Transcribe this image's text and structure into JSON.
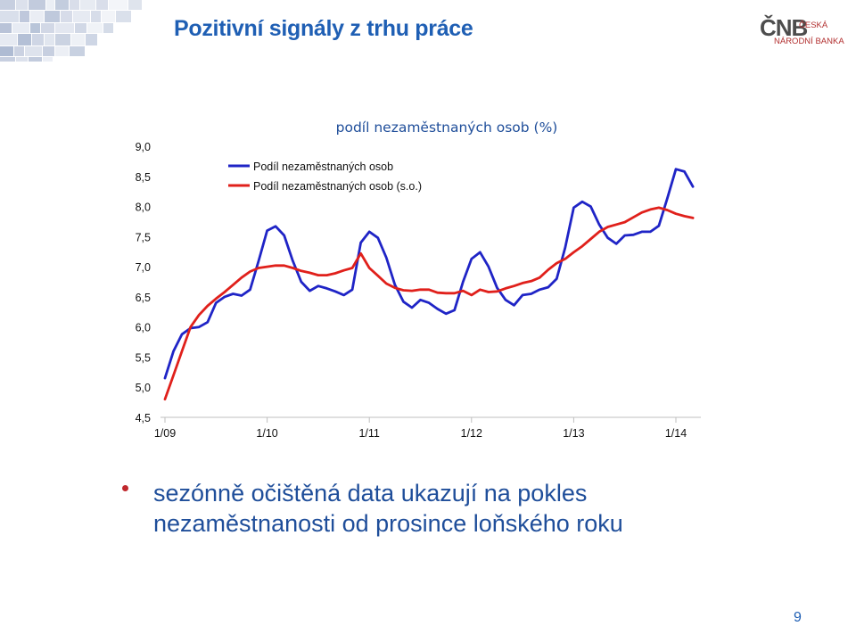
{
  "slide": {
    "title": "Pozitivní signály z trhu práce",
    "logo_mark": "ČNB",
    "logo_line1": "ČESKÁ",
    "logo_line2": "NÁRODNÍ BANKA",
    "bullet": "sezónně očištěná data ukazují na pokles nezaměstnanosti od prosince loňského roku",
    "page_number": "9"
  },
  "colors": {
    "title": "#1f5fb4",
    "series_raw": "#1f24c6",
    "series_sa": "#e0201b",
    "bullet": "#c0282d",
    "bullet_text": "#1f4e9a",
    "mosaic": [
      "#c7cfe0",
      "#d9dfeb",
      "#b9c3d8",
      "#e6eaf2",
      "#aebbd3"
    ]
  },
  "chart_data": {
    "type": "line",
    "title": "podíl nezaměstnaných osob (%)",
    "xlabel": "",
    "ylabel": "",
    "ylim": [
      4.5,
      9.0
    ],
    "yticks": [
      "4,5",
      "5,0",
      "5,5",
      "6,0",
      "6,5",
      "7,0",
      "7,5",
      "8,0",
      "8,5",
      "9,0"
    ],
    "xticks": [
      "1/09",
      "1/10",
      "1/11",
      "1/12",
      "1/13",
      "1/14"
    ],
    "x_start": "1/09",
    "x_step": "1 month",
    "legend_position": "top-left",
    "grid": false,
    "series": [
      {
        "name": "Podíl nezaměstnaných osob",
        "color": "#1f24c6",
        "values": [
          5.15,
          5.6,
          5.88,
          5.98,
          6.0,
          6.08,
          6.4,
          6.5,
          6.55,
          6.52,
          6.62,
          7.1,
          7.6,
          7.67,
          7.52,
          7.1,
          6.75,
          6.6,
          6.68,
          6.64,
          6.59,
          6.53,
          6.62,
          7.4,
          7.58,
          7.48,
          7.15,
          6.7,
          6.42,
          6.32,
          6.45,
          6.4,
          6.3,
          6.22,
          6.28,
          6.75,
          7.13,
          7.24,
          7.0,
          6.65,
          6.45,
          6.36,
          6.53,
          6.55,
          6.62,
          6.66,
          6.8,
          7.32,
          7.98,
          8.08,
          8.0,
          7.7,
          7.48,
          7.38,
          7.52,
          7.53,
          7.58,
          7.58,
          7.68,
          8.14,
          8.62,
          8.58,
          8.33
        ]
      },
      {
        "name": "Podíl nezaměstnaných osob (s.o.)",
        "color": "#e0201b",
        "values": [
          4.8,
          5.2,
          5.6,
          6.0,
          6.2,
          6.35,
          6.47,
          6.58,
          6.7,
          6.82,
          6.92,
          6.98,
          7.0,
          7.02,
          7.02,
          6.98,
          6.93,
          6.9,
          6.86,
          6.86,
          6.89,
          6.94,
          6.98,
          7.22,
          6.98,
          6.85,
          6.72,
          6.65,
          6.61,
          6.6,
          6.62,
          6.62,
          6.57,
          6.56,
          6.56,
          6.6,
          6.53,
          6.62,
          6.58,
          6.59,
          6.64,
          6.68,
          6.73,
          6.76,
          6.82,
          6.95,
          7.06,
          7.13,
          7.24,
          7.34,
          7.46,
          7.58,
          7.66,
          7.7,
          7.74,
          7.82,
          7.9,
          7.95,
          7.98,
          7.94,
          7.88,
          7.84,
          7.81
        ]
      }
    ]
  }
}
